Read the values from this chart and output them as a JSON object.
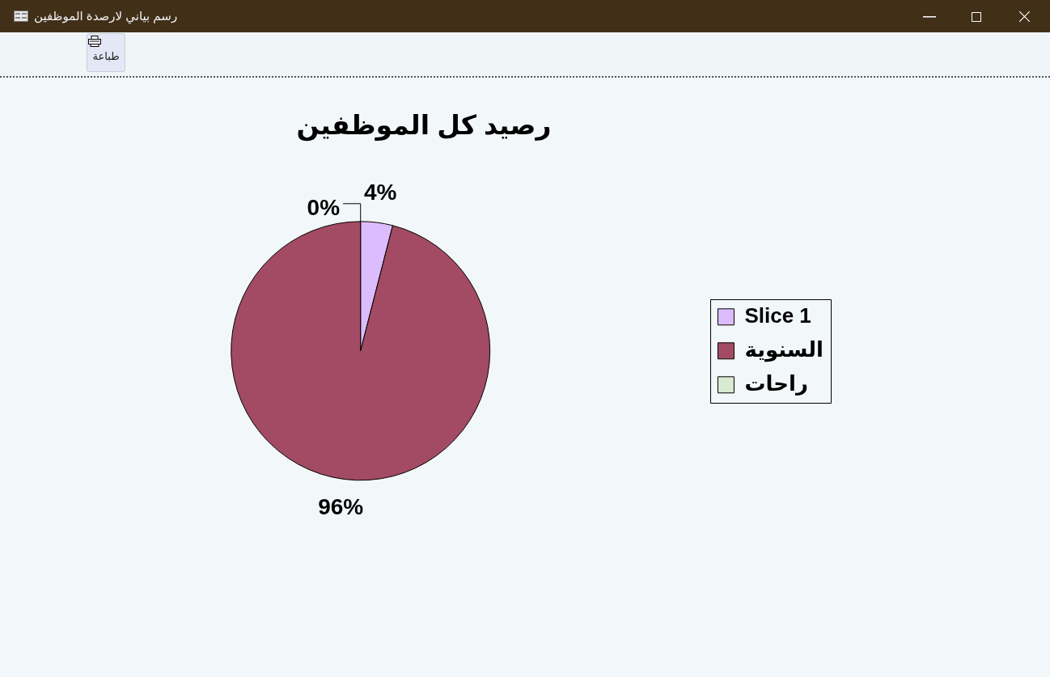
{
  "chart_data": {
    "type": "pie",
    "title": "رصيد كل الموظفين",
    "categories": [
      "Slice 1",
      "السنوية",
      "راحات"
    ],
    "values": [
      4,
      96,
      0
    ],
    "colors": [
      "#dcbcfc",
      "#a34b64",
      "#d8ead0"
    ],
    "value_labels": [
      "4%",
      "96%",
      "0%"
    ],
    "legend": "right",
    "annotations": [
      "رسم بياني لارصدة الموظفين",
      "طباعة"
    ]
  }
}
